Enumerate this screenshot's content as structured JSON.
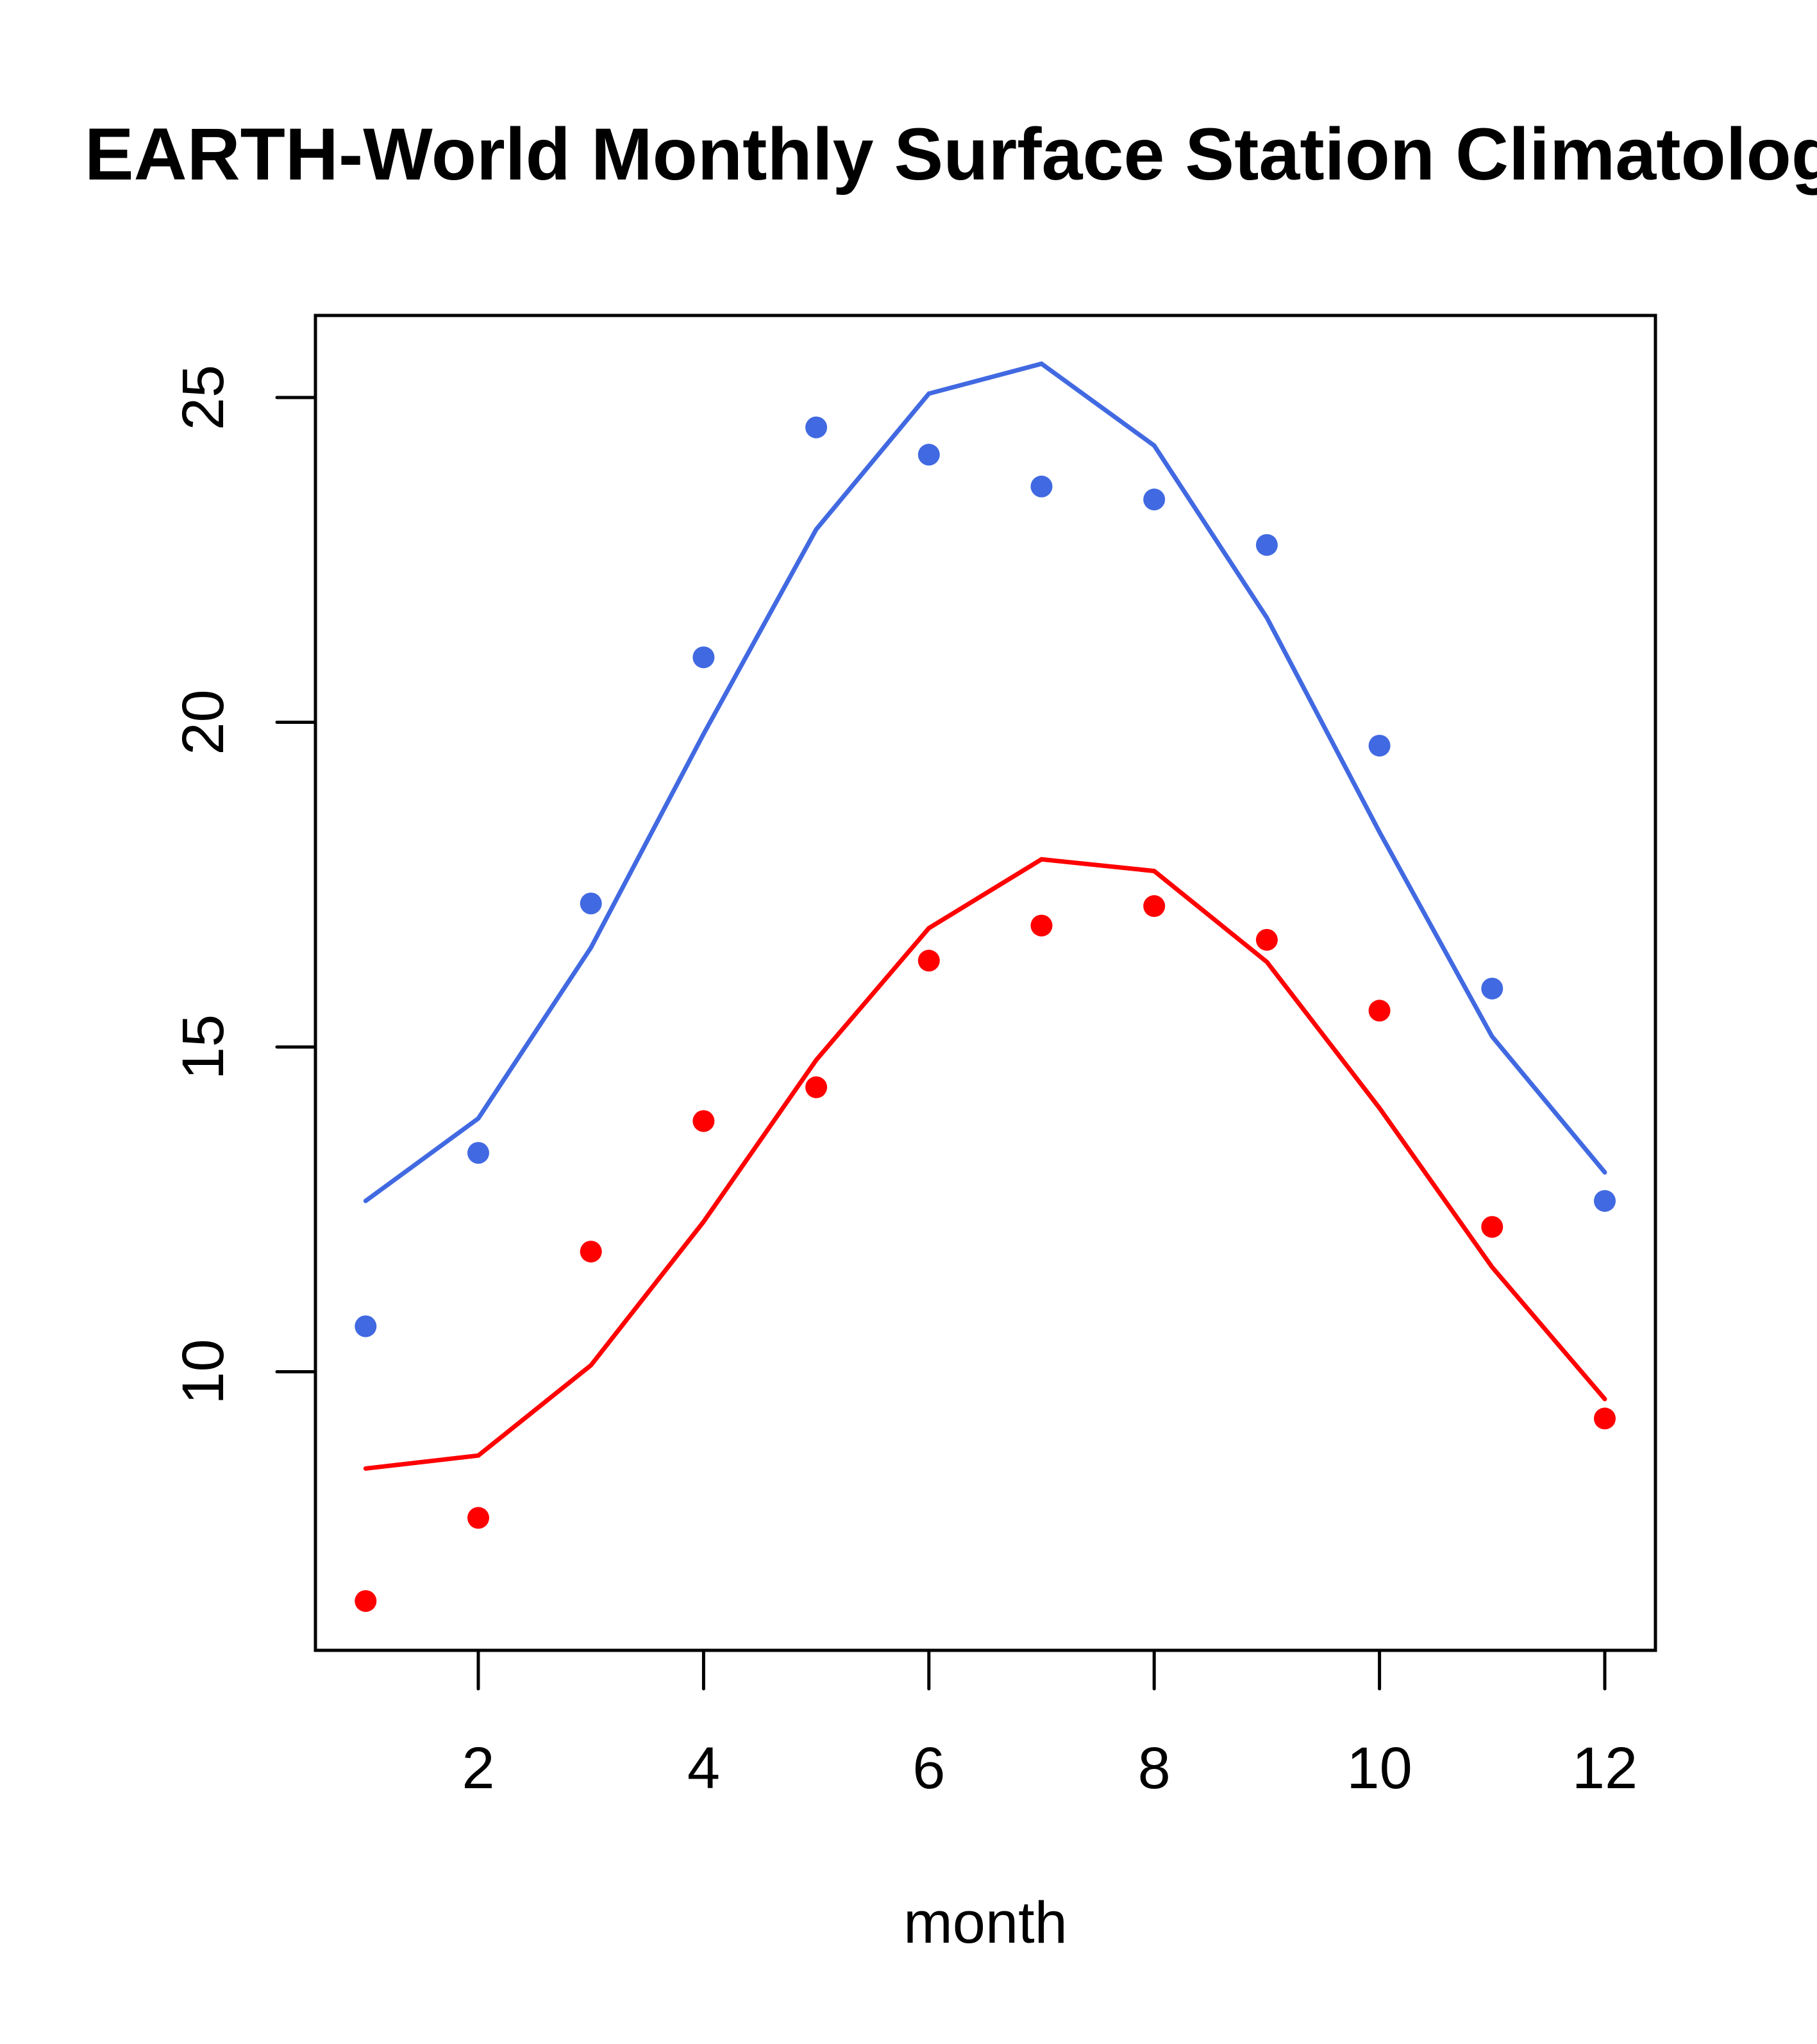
{
  "chart_data": {
    "type": "scatter",
    "title": "EARTH-World Monthly Surface Station Climatology",
    "xlabel": "month",
    "ylabel": "",
    "xlim": [
      0.75,
      12.5
    ],
    "ylim": [
      5.8,
      26.3
    ],
    "xticks": [
      2,
      4,
      6,
      8,
      10,
      12
    ],
    "yticks": [
      10,
      15,
      20,
      25
    ],
    "grid": false,
    "legend": null,
    "x": [
      1,
      2,
      3,
      4,
      5,
      6,
      7,
      8,
      9,
      10,
      11,
      12
    ],
    "series": [
      {
        "name": "blue-points",
        "kind": "points",
        "color": "#4169E1",
        "values": [
          10.7,
          13.37,
          17.21,
          21.0,
          24.54,
          24.12,
          23.63,
          23.43,
          22.73,
          19.64,
          15.9,
          12.63
        ]
      },
      {
        "name": "blue-line",
        "kind": "line",
        "color": "#4169E1",
        "values": [
          12.63,
          13.9,
          16.53,
          19.82,
          22.97,
          25.06,
          25.52,
          24.26,
          21.61,
          18.31,
          15.16,
          13.07
        ]
      },
      {
        "name": "red-points",
        "kind": "points",
        "color": "#FF0000",
        "values": [
          6.47,
          7.75,
          11.85,
          13.86,
          14.38,
          16.33,
          16.87,
          17.17,
          16.65,
          15.56,
          12.23,
          9.28
        ]
      },
      {
        "name": "red-line",
        "kind": "line",
        "color": "#FF0000",
        "values": [
          8.51,
          8.71,
          10.1,
          12.31,
          14.8,
          16.83,
          17.89,
          17.71,
          16.31,
          14.06,
          11.61,
          9.58
        ]
      }
    ]
  }
}
